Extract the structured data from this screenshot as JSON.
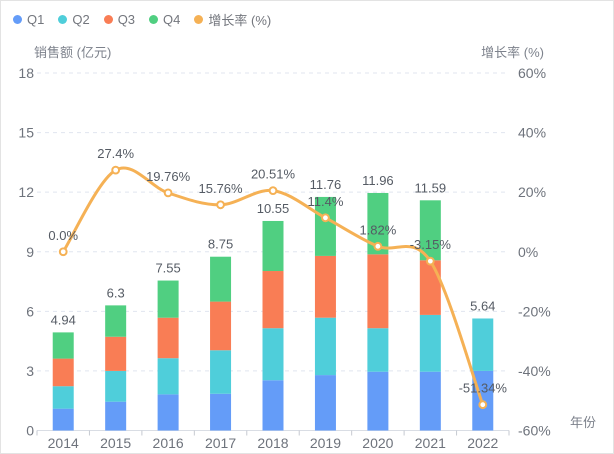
{
  "chart_data": {
    "type": "bar",
    "subtype": "stacked-bar-with-line",
    "categories": [
      "2014",
      "2015",
      "2016",
      "2017",
      "2018",
      "2019",
      "2020",
      "2021",
      "2022"
    ],
    "series": [
      {
        "name": "Q1",
        "type": "bar",
        "stack": "sales",
        "color": "#649CF8",
        "values": [
          1.1,
          1.45,
          1.82,
          1.85,
          2.53,
          2.79,
          2.96,
          2.96,
          3.0
        ]
      },
      {
        "name": "Q2",
        "type": "bar",
        "stack": "sales",
        "color": "#4FCEDA",
        "values": [
          1.13,
          1.55,
          1.82,
          2.19,
          2.62,
          2.89,
          2.19,
          2.86,
          2.64
        ]
      },
      {
        "name": "Q3",
        "type": "bar",
        "stack": "sales",
        "color": "#F97D55",
        "values": [
          1.39,
          1.72,
          2.04,
          2.45,
          2.88,
          3.11,
          3.72,
          2.75,
          0
        ]
      },
      {
        "name": "Q4",
        "type": "bar",
        "stack": "sales",
        "color": "#50CF81",
        "values": [
          1.32,
          1.58,
          1.87,
          2.26,
          2.52,
          2.97,
          3.09,
          3.02,
          0
        ]
      },
      {
        "name": "增长率 (%)",
        "type": "line",
        "axis": "right",
        "color": "#F5B155",
        "values": [
          0.0,
          27.4,
          19.76,
          15.76,
          20.51,
          11.4,
          1.82,
          -3.15,
          -51.34
        ],
        "point_labels": [
          "0.0%",
          "27.4%",
          "19.76%",
          "15.76%",
          "20.51%",
          "11.4%",
          "1.82%",
          "-3.15%",
          "-51.34%"
        ]
      }
    ],
    "bar_totals": {
      "values": [
        4.94,
        6.3,
        7.55,
        8.75,
        10.55,
        11.76,
        11.96,
        11.59,
        5.64
      ],
      "labels": [
        "4.94",
        "6.3",
        "7.55",
        "8.75",
        "10.55",
        "11.76",
        "11.96",
        "11.59",
        "5.64"
      ]
    },
    "left_axis": {
      "title": "销售额 (亿元)",
      "min": 0,
      "max": 18,
      "tick_values": [
        0,
        3,
        6,
        9,
        12,
        15,
        18
      ],
      "tick_labels": [
        "0",
        "3",
        "6",
        "9",
        "12",
        "15",
        "18"
      ]
    },
    "right_axis": {
      "title": "增长率 (%)",
      "min": -60,
      "max": 60,
      "tick_values": [
        -60,
        -40,
        -20,
        0,
        20,
        40,
        60
      ],
      "tick_labels": [
        "-60%",
        "-40%",
        "-20%",
        "0%",
        "20%",
        "40%",
        "60%"
      ]
    },
    "x_axis": {
      "title": "年份"
    },
    "legend_position": "top-left",
    "grid": true,
    "colors": {
      "grid_line": "#e0e5ef",
      "axis_line": "#d9dde4",
      "tick_mark": "#c6cad1",
      "tick_label": "#6e737c",
      "value_label": "#555b64",
      "marker_fill": "#ffffff"
    }
  }
}
